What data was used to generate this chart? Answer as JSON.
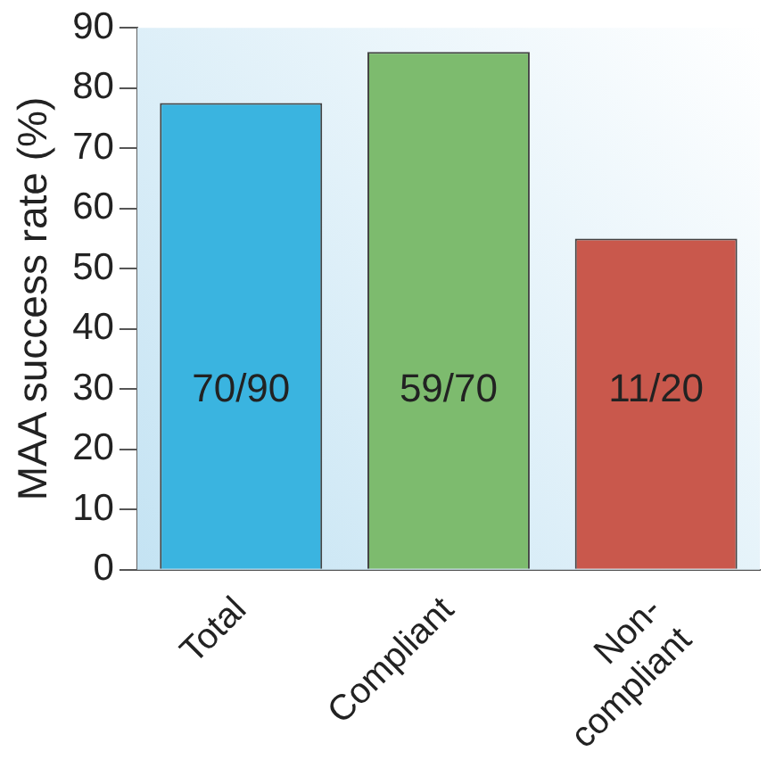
{
  "chart_data": {
    "type": "bar",
    "ylabel": "MAA success rate (%)",
    "categories": [
      "Total",
      "Compliant",
      "Non-compliant"
    ],
    "values": [
      77.5,
      86,
      55
    ],
    "colors": [
      "#3ab4e0",
      "#7dbb6e",
      "#c9584c"
    ],
    "value_labels": [
      "70/90",
      "59/70",
      "11/20"
    ],
    "ylim": [
      0,
      90
    ],
    "yticks": [
      0,
      10,
      20,
      30,
      40,
      50,
      60,
      70,
      80,
      90
    ],
    "grid": false,
    "legend": false
  }
}
